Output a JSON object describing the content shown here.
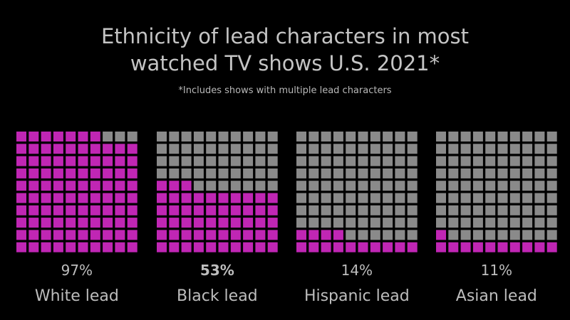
{
  "chart_data": {
    "type": "waffle",
    "title_lines": [
      "Ethnicity of lead characters in most",
      "watched TV shows U.S. 2021*"
    ],
    "subtitle": "*Includes shows with multiple lead characters",
    "grid": {
      "rows": 10,
      "cols": 10
    },
    "series": [
      {
        "name": "White lead",
        "value": 97,
        "value_label": "97%",
        "bold": false
      },
      {
        "name": "Black lead",
        "value": 53,
        "value_label": "53%",
        "bold": true
      },
      {
        "name": "Hispanic lead",
        "value": 14,
        "value_label": "14%",
        "bold": false
      },
      {
        "name": "Asian lead",
        "value": 11,
        "value_label": "11%",
        "bold": false
      }
    ],
    "colors": {
      "filled": "#c026b4",
      "empty": "#8a8a8a",
      "background": "#000000"
    }
  }
}
